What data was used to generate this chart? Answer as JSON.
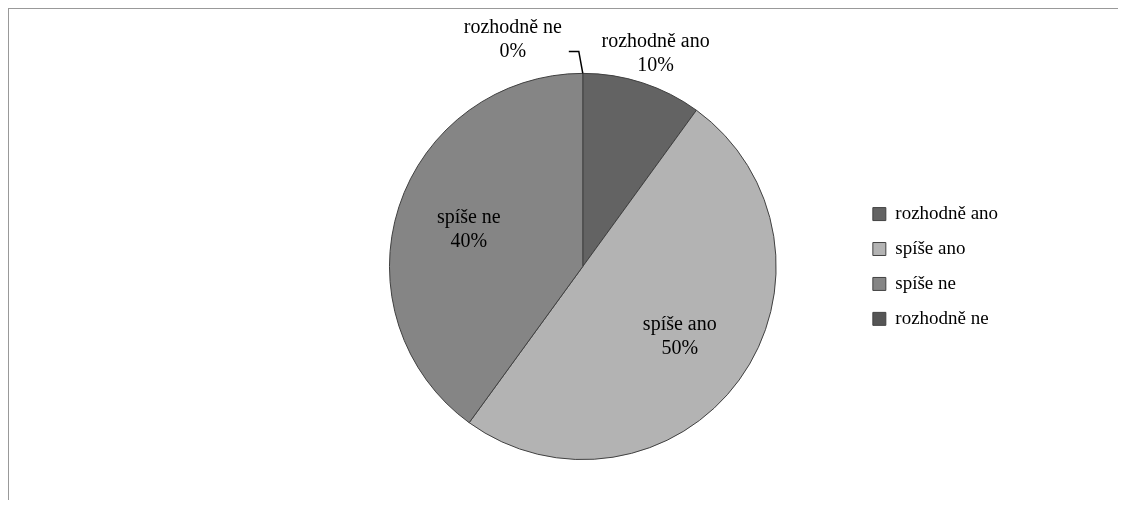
{
  "chart_data": {
    "type": "pie",
    "categories": [
      "rozhodně ano",
      "spíše ano",
      "spíše ne",
      "rozhodně ne"
    ],
    "values": [
      10,
      50,
      40,
      0
    ],
    "colors": [
      "#636363",
      "#b3b3b3",
      "#858585",
      "#555555"
    ],
    "value_labels": [
      "10%",
      "50%",
      "40%",
      "0%"
    ],
    "legend": "right"
  }
}
